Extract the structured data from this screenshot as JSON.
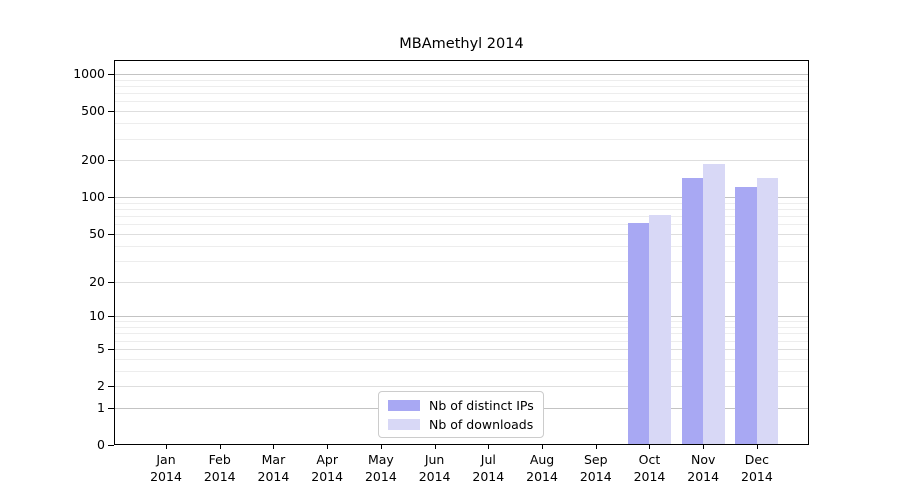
{
  "chart_data": {
    "type": "bar",
    "title": "MBAmethyl 2014",
    "categories": [
      "Jan 2014",
      "Feb 2014",
      "Mar 2014",
      "Apr 2014",
      "May 2014",
      "Jun 2014",
      "Jul 2014",
      "Aug 2014",
      "Sep 2014",
      "Oct 2014",
      "Nov 2014",
      "Dec 2014"
    ],
    "series": [
      {
        "name": "Nb of distinct IPs",
        "color": "#a8a8f3",
        "values": [
          0,
          0,
          0,
          0,
          0,
          0,
          0,
          0,
          0,
          60,
          140,
          120
        ]
      },
      {
        "name": "Nb of downloads",
        "color": "#d8d8f6",
        "values": [
          0,
          0,
          0,
          0,
          0,
          0,
          0,
          0,
          0,
          70,
          182,
          142
        ]
      }
    ],
    "yticks": [
      0,
      1,
      2,
      5,
      10,
      20,
      50,
      100,
      200,
      500,
      1000
    ],
    "scale": "log1p",
    "ylim": [
      0,
      1300
    ],
    "grid": true,
    "legend_position": "inside bottom-center"
  }
}
